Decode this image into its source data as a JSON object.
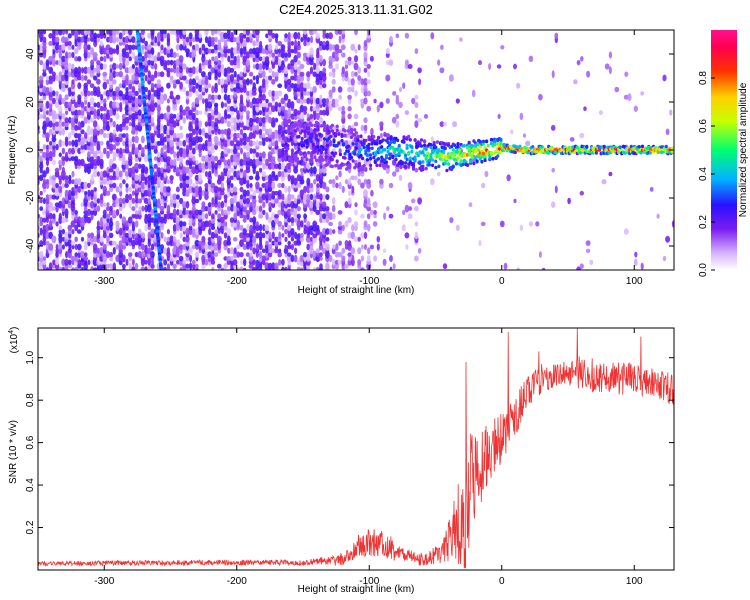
{
  "title": "C2E4.2025.313.11.31.G02",
  "chart_data": [
    {
      "type": "heatmap",
      "xlabel": "Height of straight line (km)",
      "ylabel": "Frequency (Hz)",
      "xlim": [
        -350,
        130
      ],
      "ylim": [
        -50,
        50
      ],
      "x_ticks": [
        -300,
        -200,
        -100,
        0,
        100
      ],
      "y_ticks": [
        -40,
        -20,
        0,
        20,
        40
      ],
      "colorbar": {
        "label": "Normalized spectral amplitude",
        "range": [
          0,
          1
        ],
        "ticks": [
          0.0,
          0.2,
          0.4,
          0.6,
          0.8
        ]
      },
      "features": {
        "diagonal_track": {
          "x_start": -275,
          "y_start": 50,
          "x_end": -257,
          "y_end": -50
        },
        "ridge_x": [
          -160,
          -140,
          -120,
          -100,
          -80,
          -60,
          -40,
          -20,
          0,
          20,
          60,
          100,
          130
        ],
        "ridge_y": [
          3,
          4,
          1,
          -1,
          0,
          -2,
          -3,
          -1,
          1,
          0,
          0,
          0,
          0
        ],
        "ridge_amplitude": [
          0.25,
          0.3,
          0.35,
          0.4,
          0.5,
          0.55,
          0.7,
          0.85,
          0.9,
          0.95,
          0.95,
          0.95,
          0.9
        ]
      }
    },
    {
      "type": "line",
      "xlabel": "Height of straight line (km)",
      "ylabel": "SNR (10 * v/v)",
      "y_multiplier": "(x10",
      "y_multiplier_exp": "4",
      "y_multiplier_close": ")",
      "xlim": [
        -350,
        130
      ],
      "ylim": [
        0,
        1.14
      ],
      "x_ticks": [
        -300,
        -200,
        -100,
        0,
        100
      ],
      "y_ticks": [
        0.2,
        0.4,
        0.6,
        0.8,
        1.0
      ],
      "color": "#ee3333",
      "envelope": {
        "x": [
          -350,
          -250,
          -150,
          -120,
          -105,
          -90,
          -75,
          -60,
          -45,
          -35,
          -28,
          -20,
          -10,
          0,
          10,
          20,
          30,
          45,
          60,
          80,
          100,
          115,
          130
        ],
        "mean": [
          0.03,
          0.035,
          0.035,
          0.05,
          0.12,
          0.13,
          0.07,
          0.05,
          0.08,
          0.2,
          0.3,
          0.45,
          0.55,
          0.62,
          0.72,
          0.85,
          0.9,
          0.92,
          0.93,
          0.9,
          0.9,
          0.88,
          0.85
        ],
        "noise": [
          0.01,
          0.012,
          0.012,
          0.03,
          0.07,
          0.07,
          0.04,
          0.03,
          0.05,
          0.15,
          0.35,
          0.2,
          0.15,
          0.12,
          0.1,
          0.08,
          0.07,
          0.06,
          0.08,
          0.08,
          0.08,
          0.07,
          0.08
        ],
        "peaks": [
          [
            -27,
            0.98
          ],
          [
            5,
            1.12
          ],
          [
            28,
            1.03
          ],
          [
            57,
            1.14
          ],
          [
            105,
            1.1
          ]
        ]
      }
    }
  ]
}
